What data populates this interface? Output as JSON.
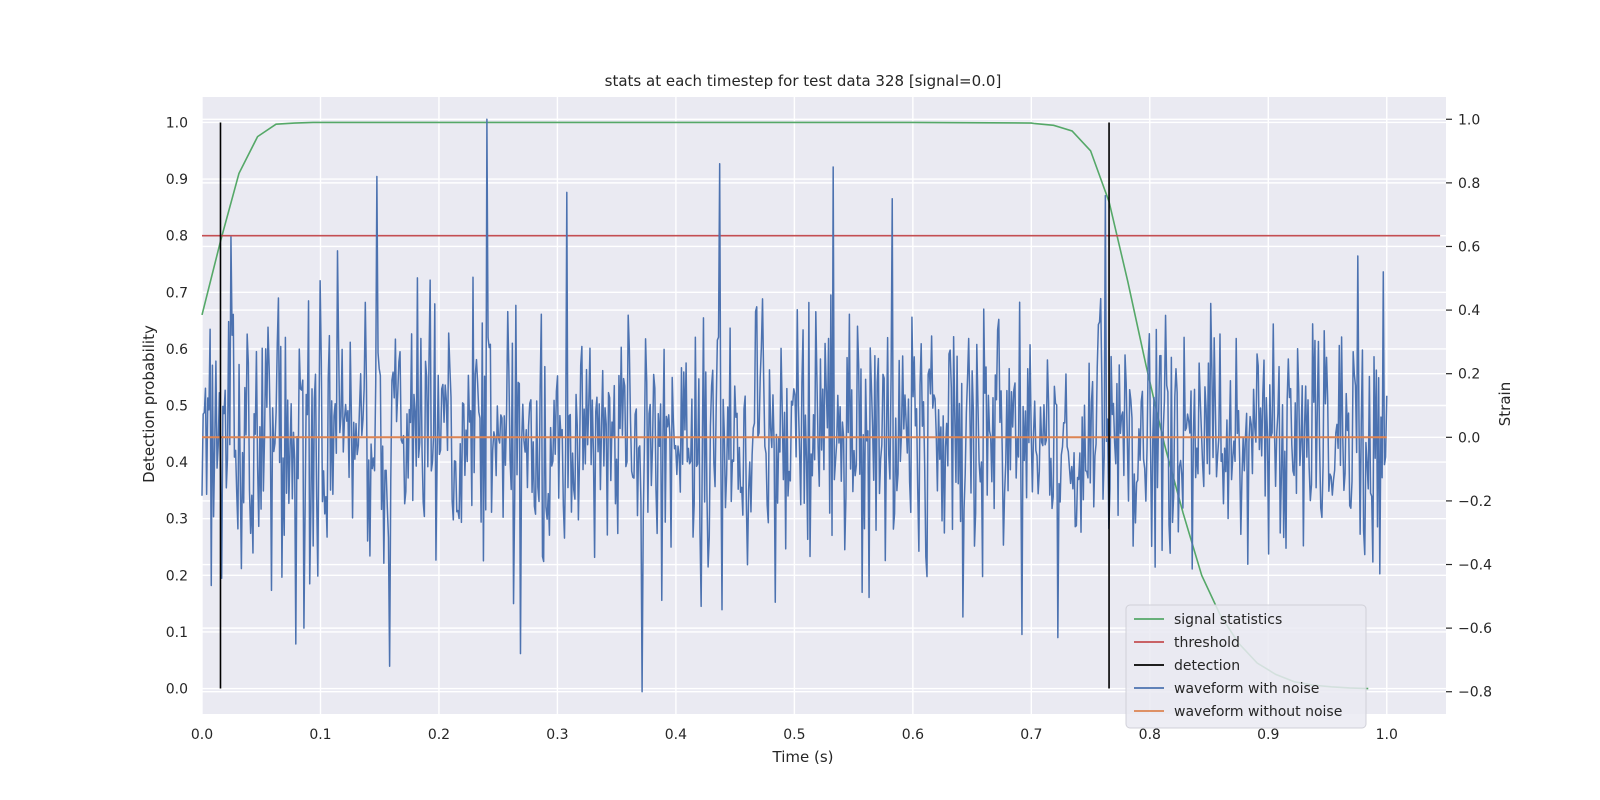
{
  "chart_data": {
    "type": "line",
    "title": "stats at each timestep for test data 328 [signal=0.0]",
    "xlabel": "Time (s)",
    "ylabel": "Detection probability",
    "y2label": "Strain",
    "xlim": [
      0.0,
      1.05
    ],
    "ylim": [
      -0.045,
      1.045
    ],
    "y2lim": [
      -0.87,
      1.07
    ],
    "xticks": [
      0.0,
      0.1,
      0.2,
      0.3,
      0.4,
      0.5,
      0.6,
      0.7,
      0.8,
      0.9,
      1.0
    ],
    "xtick_labels": [
      "0.0",
      "0.1",
      "0.2",
      "0.3",
      "0.4",
      "0.5",
      "0.6",
      "0.7",
      "0.8",
      "0.9",
      "1.0"
    ],
    "yticks": [
      0.0,
      0.1,
      0.2,
      0.3,
      0.4,
      0.5,
      0.6,
      0.7,
      0.8,
      0.9,
      1.0
    ],
    "ytick_labels": [
      "0.0",
      "0.1",
      "0.2",
      "0.3",
      "0.4",
      "0.5",
      "0.6",
      "0.7",
      "0.8",
      "0.9",
      "1.0"
    ],
    "y2ticks": [
      -0.8,
      -0.6,
      -0.4,
      -0.2,
      0.0,
      0.2,
      0.4,
      0.6,
      0.8,
      1.0
    ],
    "y2tick_labels": [
      "−0.8",
      "−0.6",
      "−0.4",
      "−0.2",
      "0.0",
      "0.2",
      "0.4",
      "0.6",
      "0.8",
      "1.0"
    ],
    "grid": true,
    "legend_placement": "lower-right",
    "series": [
      {
        "name": "signal statistics",
        "axis": "left",
        "color": "#55a868",
        "x": [
          0.0,
          0.0156,
          0.0312,
          0.0469,
          0.0625,
          0.0781,
          0.0938,
          0.1,
          0.2,
          0.3,
          0.4,
          0.5,
          0.6,
          0.7,
          0.7031,
          0.7188,
          0.7344,
          0.75,
          0.7656,
          0.7813,
          0.7969,
          0.8125,
          0.8281,
          0.8438,
          0.8594,
          0.875,
          0.8906,
          0.9063,
          0.9219,
          0.9375,
          0.9531,
          0.9688,
          0.9844
        ],
        "y": [
          0.66,
          0.79,
          0.91,
          0.975,
          0.997,
          0.999,
          1.0,
          1.0,
          1.0,
          1.0,
          1.0,
          1.0,
          1.0,
          0.999,
          0.998,
          0.995,
          0.985,
          0.95,
          0.86,
          0.72,
          0.57,
          0.43,
          0.31,
          0.2,
          0.13,
          0.08,
          0.045,
          0.025,
          0.012,
          0.006,
          0.003,
          0.001,
          0.0
        ]
      },
      {
        "name": "threshold",
        "axis": "left",
        "color": "#c44e52",
        "x": [
          0.0,
          1.045
        ],
        "y": [
          0.8,
          0.8
        ]
      },
      {
        "name": "detection",
        "axis": "left",
        "color": "#000000",
        "segments": [
          {
            "x": 0.0156,
            "y0": 0.0,
            "y1": 1.0
          },
          {
            "x": 0.7656,
            "y0": 0.0,
            "y1": 1.0
          }
        ]
      },
      {
        "name": "waveform with noise",
        "axis": "right",
        "color": "#4c72b0",
        "n_points": 1024,
        "x_range": [
          0.0,
          1.0
        ],
        "mean": 0.0,
        "std": 0.2,
        "peaks": [
          {
            "x": 0.2402,
            "y": 1.0
          },
          {
            "x": 0.3711,
            "y": -0.8
          },
          {
            "x": 0.4365,
            "y": 0.86
          },
          {
            "x": 0.5327,
            "y": 0.85
          },
          {
            "x": 0.1479,
            "y": 0.82
          },
          {
            "x": 0.3076,
            "y": 0.77
          },
          {
            "x": 0.5825,
            "y": 0.75
          },
          {
            "x": 0.7627,
            "y": 0.76
          },
          {
            "x": 0.0791,
            "y": -0.65
          },
          {
            "x": 0.1587,
            "y": -0.72
          },
          {
            "x": 0.2686,
            "y": -0.68
          },
          {
            "x": 0.6924,
            "y": -0.62
          },
          {
            "x": 0.7222,
            "y": -0.63
          },
          {
            "x": 0.9756,
            "y": 0.57
          },
          {
            "x": 0.0244,
            "y": 0.63
          }
        ]
      },
      {
        "name": "waveform without noise",
        "axis": "right",
        "color": "#dd8452",
        "x": [
          0.0,
          1.0
        ],
        "y": [
          0.0,
          0.0
        ]
      }
    ]
  }
}
